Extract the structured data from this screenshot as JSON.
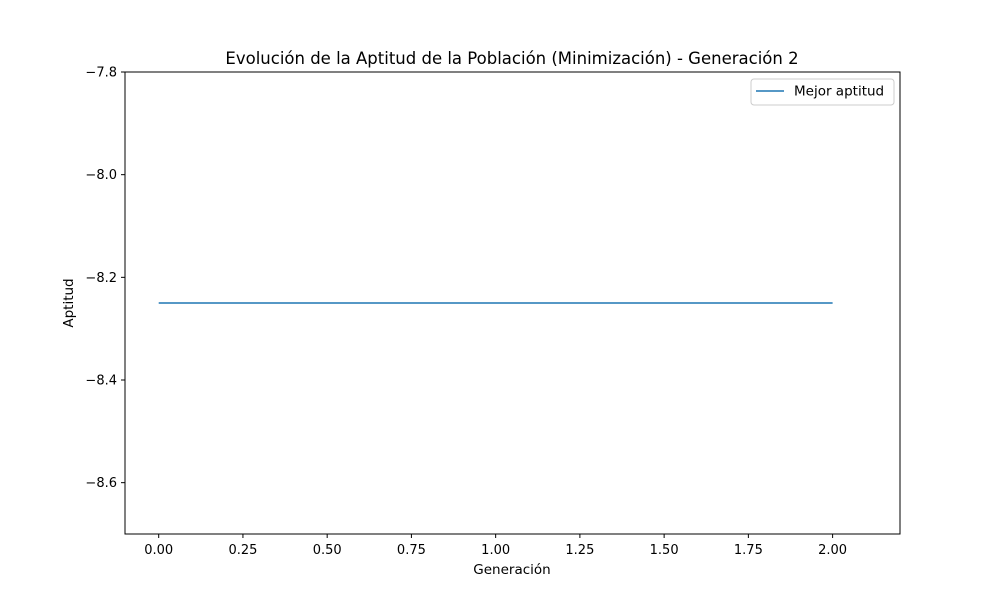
{
  "chart_data": {
    "type": "line",
    "title": "Evolución de la Aptitud de la Población (Minimización) - Generación 2",
    "xlabel": "Generación",
    "ylabel": "Aptitud",
    "xlim": [
      -0.1,
      2.2
    ],
    "ylim": [
      -8.7,
      -7.8
    ],
    "xticks": [
      0.0,
      0.25,
      0.5,
      0.75,
      1.0,
      1.25,
      1.5,
      1.75,
      2.0
    ],
    "xtick_labels": [
      "0.00",
      "0.25",
      "0.50",
      "0.75",
      "1.00",
      "1.25",
      "1.50",
      "1.75",
      "2.00"
    ],
    "yticks": [
      -7.8,
      -8.0,
      -8.2,
      -8.4,
      -8.6
    ],
    "ytick_labels": [
      "−7.8",
      "−8.0",
      "−8.2",
      "−8.4",
      "−8.6"
    ],
    "grid": false,
    "legend_position": "top-right",
    "series": [
      {
        "name": "Mejor aptitud",
        "color": "#1f77b4",
        "x": [
          0,
          1,
          2
        ],
        "y": [
          -8.25,
          -8.25,
          -8.25
        ]
      }
    ]
  }
}
